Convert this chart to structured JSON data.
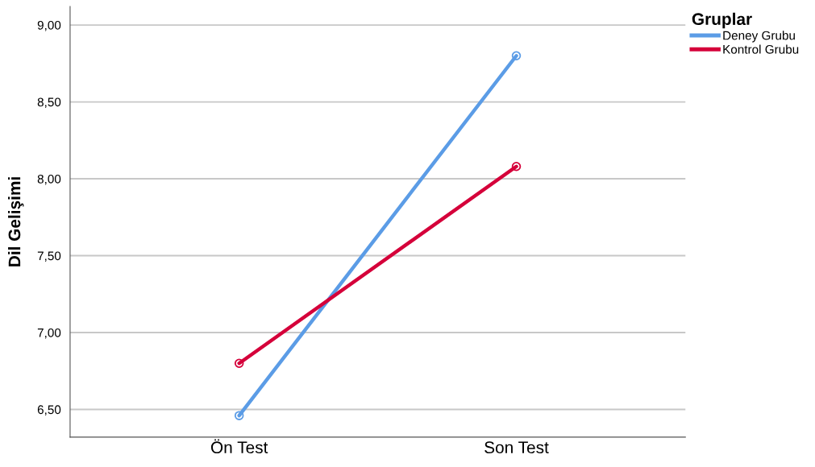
{
  "chart_data": {
    "type": "line",
    "ylabel": "Dil Gelişimi",
    "legend_title": "Gruplar",
    "categories": [
      "Ön Test",
      "Son Test"
    ],
    "series": [
      {
        "name": "Deney Grubu",
        "color": "#5b9ce6",
        "values": [
          6.46,
          8.8
        ]
      },
      {
        "name": "Kontrol Grubu",
        "color": "#d5003a",
        "values": [
          6.8,
          8.08
        ]
      }
    ],
    "ylim": [
      6.32,
      9.12
    ],
    "yticks": [
      {
        "value": 6.5,
        "label": "6,50"
      },
      {
        "value": 7.0,
        "label": "7,00"
      },
      {
        "value": 7.5,
        "label": "7,50"
      },
      {
        "value": 8.0,
        "label": "8,00"
      },
      {
        "value": 8.5,
        "label": "8,50"
      },
      {
        "value": 9.0,
        "label": "9,00"
      }
    ],
    "grid": "y",
    "legend": "top right",
    "marker": "circle",
    "line_style": "solid"
  }
}
